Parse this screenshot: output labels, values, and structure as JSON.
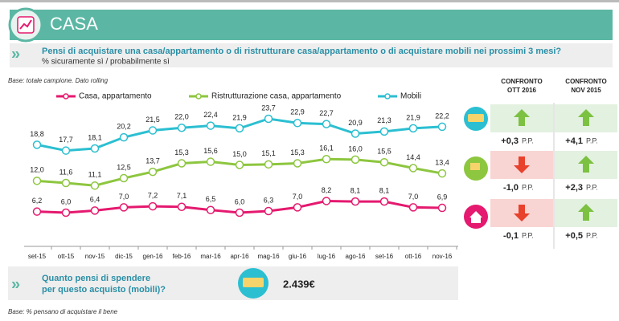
{
  "header": {
    "title": "CASA",
    "question": "Pensi di acquistare una casa/appartamento o di ristrutturare casa/appartamento o di acquistare mobili nei prossimi 3 mesi?",
    "subtitle": "% sicuramente sì / probabilmente sì",
    "base": "Base: totale campione. Dato rolling"
  },
  "chart_data": {
    "type": "line",
    "categories": [
      "set-15",
      "ott-15",
      "nov-15",
      "dic-15",
      "gen-16",
      "feb-16",
      "mar-16",
      "apr-16",
      "mag-16",
      "giu-16",
      "lug-16",
      "ago-16",
      "set-16",
      "ott-16",
      "nov-16"
    ],
    "series": [
      {
        "name": "Casa, appartamento",
        "color": "#e5196f",
        "values": [
          6.2,
          6.0,
          6.4,
          7.0,
          7.2,
          7.1,
          6.5,
          6.0,
          6.3,
          7.0,
          8.2,
          8.1,
          8.1,
          7.0,
          6.9
        ],
        "value_labels": [
          "6,2",
          "6,0",
          "6,4",
          "7,0",
          "7,2",
          "7,1",
          "6,5",
          "6,0",
          "6,3",
          "7,0",
          "8,2",
          "8,1",
          "8,1",
          "7,0",
          "6,9"
        ]
      },
      {
        "name": "Ristrutturazione casa, appartamento",
        "color": "#8dc63f",
        "values": [
          12.0,
          11.6,
          11.1,
          12.5,
          13.7,
          15.3,
          15.6,
          15.0,
          15.1,
          15.3,
          16.1,
          16.0,
          15.5,
          14.4,
          13.4
        ],
        "value_labels": [
          "12,0",
          "11,6",
          "11,1",
          "12,5",
          "13,7",
          "15,3",
          "15,6",
          "15,0",
          "15,1",
          "15,3",
          "16,1",
          "16,0",
          "15,5",
          "14,4",
          "13,4"
        ]
      },
      {
        "name": "Mobili",
        "color": "#2bbfd1",
        "values": [
          18.8,
          17.7,
          18.1,
          20.2,
          21.5,
          22.0,
          22.4,
          21.9,
          23.7,
          22.9,
          22.7,
          20.9,
          21.3,
          21.9,
          22.2
        ],
        "value_labels": [
          "18,8",
          "17,7",
          "18,1",
          "20,2",
          "21,5",
          "22,0",
          "22,4",
          "21,9",
          "23,7",
          "22,9",
          "22,7",
          "20,9",
          "21,3",
          "21,9",
          "22,2"
        ]
      }
    ]
  },
  "comparison": {
    "headers": [
      [
        "CONFRONTO",
        "OTT 2016"
      ],
      [
        "CONFRONTO",
        "NOV 2015"
      ]
    ],
    "rows": [
      [
        {
          "value": "+0,3",
          "unit": "P.P."
        },
        {
          "value": "+4,1",
          "unit": "P.P."
        }
      ],
      [
        {
          "value": "-1,0",
          "unit": "P.P."
        },
        {
          "value": "+2,3",
          "unit": "P.P."
        }
      ],
      [
        {
          "value": "-0,1",
          "unit": "P.P."
        },
        {
          "value": "+0,5",
          "unit": "P.P."
        }
      ]
    ]
  },
  "spend": {
    "question": [
      "Quanto pensi di spendere",
      "per questo acquisto (mobili)?"
    ],
    "amount": "2.439€",
    "base": "Base: % pensano di acquistare il bene"
  }
}
